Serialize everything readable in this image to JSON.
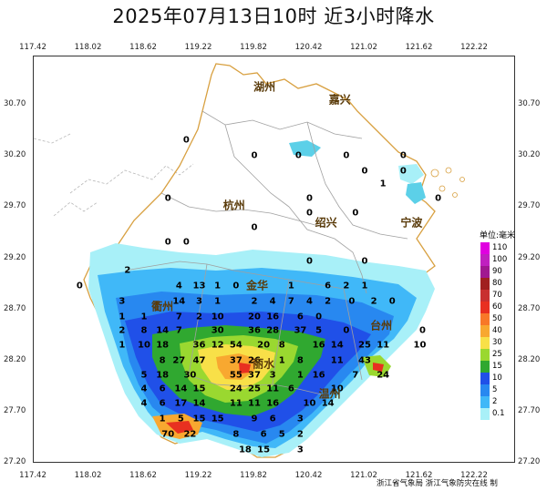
{
  "title": "2025年07月13日10时  近3小时降水",
  "lon_ticks": [
    "117.42",
    "118.02",
    "118.62",
    "119.22",
    "119.82",
    "120.42",
    "121.02",
    "121.62",
    "122.22"
  ],
  "lat_ticks": [
    "30.70",
    "30.20",
    "29.70",
    "29.20",
    "28.70",
    "28.20",
    "27.70",
    "27.20"
  ],
  "cities": [
    {
      "name": "湖州",
      "lon": 119.93,
      "lat": 30.88
    },
    {
      "name": "嘉兴",
      "lon": 120.75,
      "lat": 30.75
    },
    {
      "name": "杭州",
      "lon": 119.6,
      "lat": 29.72
    },
    {
      "name": "绍兴",
      "lon": 120.6,
      "lat": 29.55
    },
    {
      "name": "宁波",
      "lon": 121.53,
      "lat": 29.55
    },
    {
      "name": "金华",
      "lon": 119.85,
      "lat": 28.94
    },
    {
      "name": "衢州",
      "lon": 118.82,
      "lat": 28.73
    },
    {
      "name": "台州",
      "lon": 121.2,
      "lat": 28.55
    },
    {
      "name": "丽水",
      "lon": 119.92,
      "lat": 28.17
    },
    {
      "name": "温州",
      "lon": 120.64,
      "lat": 27.88
    }
  ],
  "rain_values": [
    {
      "v": "0",
      "lon": 119.08,
      "lat": 30.35
    },
    {
      "v": "0",
      "lon": 119.82,
      "lat": 30.2
    },
    {
      "v": "0",
      "lon": 120.3,
      "lat": 30.2
    },
    {
      "v": "0",
      "lon": 120.82,
      "lat": 30.2
    },
    {
      "v": "0",
      "lon": 121.02,
      "lat": 30.05
    },
    {
      "v": "0",
      "lon": 121.44,
      "lat": 30.2
    },
    {
      "v": "0",
      "lon": 121.44,
      "lat": 30.05
    },
    {
      "v": "1",
      "lon": 121.22,
      "lat": 29.93
    },
    {
      "v": "0",
      "lon": 118.88,
      "lat": 29.78
    },
    {
      "v": "0",
      "lon": 120.42,
      "lat": 29.78
    },
    {
      "v": "0",
      "lon": 121.82,
      "lat": 29.78
    },
    {
      "v": "0",
      "lon": 120.42,
      "lat": 29.64
    },
    {
      "v": "0",
      "lon": 120.92,
      "lat": 29.64
    },
    {
      "v": "0",
      "lon": 119.82,
      "lat": 29.5
    },
    {
      "v": "0",
      "lon": 118.88,
      "lat": 29.36
    },
    {
      "v": "0",
      "lon": 119.08,
      "lat": 29.36
    },
    {
      "v": "0",
      "lon": 120.42,
      "lat": 29.17
    },
    {
      "v": "0",
      "lon": 121.02,
      "lat": 29.17
    },
    {
      "v": "2",
      "lon": 118.44,
      "lat": 29.08
    },
    {
      "v": "0",
      "lon": 117.92,
      "lat": 28.93
    },
    {
      "v": "4",
      "lon": 119.0,
      "lat": 28.93
    },
    {
      "v": "13",
      "lon": 119.22,
      "lat": 28.93
    },
    {
      "v": "1",
      "lon": 119.42,
      "lat": 28.93
    },
    {
      "v": "0",
      "lon": 119.62,
      "lat": 28.93
    },
    {
      "v": "1",
      "lon": 120.22,
      "lat": 28.93
    },
    {
      "v": "6",
      "lon": 120.62,
      "lat": 28.93
    },
    {
      "v": "2",
      "lon": 120.82,
      "lat": 28.93
    },
    {
      "v": "1",
      "lon": 121.02,
      "lat": 28.93
    },
    {
      "v": "3",
      "lon": 118.38,
      "lat": 28.78
    },
    {
      "v": "14",
      "lon": 119.0,
      "lat": 28.78
    },
    {
      "v": "3",
      "lon": 119.22,
      "lat": 28.78
    },
    {
      "v": "1",
      "lon": 119.42,
      "lat": 28.78
    },
    {
      "v": "2",
      "lon": 119.82,
      "lat": 28.78
    },
    {
      "v": "4",
      "lon": 120.02,
      "lat": 28.78
    },
    {
      "v": "7",
      "lon": 120.22,
      "lat": 28.78
    },
    {
      "v": "4",
      "lon": 120.42,
      "lat": 28.78
    },
    {
      "v": "2",
      "lon": 120.62,
      "lat": 28.78
    },
    {
      "v": "0",
      "lon": 120.88,
      "lat": 28.78
    },
    {
      "v": "2",
      "lon": 121.12,
      "lat": 28.78
    },
    {
      "v": "0",
      "lon": 121.32,
      "lat": 28.78
    },
    {
      "v": "1",
      "lon": 118.38,
      "lat": 28.63
    },
    {
      "v": "1",
      "lon": 118.62,
      "lat": 28.63
    },
    {
      "v": "7",
      "lon": 119.0,
      "lat": 28.63
    },
    {
      "v": "2",
      "lon": 119.22,
      "lat": 28.63
    },
    {
      "v": "10",
      "lon": 119.42,
      "lat": 28.63
    },
    {
      "v": "20",
      "lon": 119.82,
      "lat": 28.63
    },
    {
      "v": "16",
      "lon": 120.02,
      "lat": 28.63
    },
    {
      "v": "6",
      "lon": 120.32,
      "lat": 28.63
    },
    {
      "v": "0",
      "lon": 120.52,
      "lat": 28.63
    },
    {
      "v": "2",
      "lon": 118.38,
      "lat": 28.49
    },
    {
      "v": "8",
      "lon": 118.62,
      "lat": 28.49
    },
    {
      "v": "14",
      "lon": 118.82,
      "lat": 28.49
    },
    {
      "v": "7",
      "lon": 119.0,
      "lat": 28.49
    },
    {
      "v": "30",
      "lon": 119.42,
      "lat": 28.49
    },
    {
      "v": "36",
      "lon": 119.82,
      "lat": 28.49
    },
    {
      "v": "28",
      "lon": 120.02,
      "lat": 28.49
    },
    {
      "v": "37",
      "lon": 120.32,
      "lat": 28.49
    },
    {
      "v": "5",
      "lon": 120.52,
      "lat": 28.49
    },
    {
      "v": "0",
      "lon": 120.82,
      "lat": 28.49
    },
    {
      "v": "0",
      "lon": 121.65,
      "lat": 28.49
    },
    {
      "v": "1",
      "lon": 118.38,
      "lat": 28.35
    },
    {
      "v": "10",
      "lon": 118.62,
      "lat": 28.35
    },
    {
      "v": "18",
      "lon": 118.82,
      "lat": 28.35
    },
    {
      "v": "36",
      "lon": 119.22,
      "lat": 28.35
    },
    {
      "v": "12",
      "lon": 119.42,
      "lat": 28.35
    },
    {
      "v": "54",
      "lon": 119.62,
      "lat": 28.35
    },
    {
      "v": "20",
      "lon": 119.92,
      "lat": 28.35
    },
    {
      "v": "8",
      "lon": 120.12,
      "lat": 28.35
    },
    {
      "v": "16",
      "lon": 120.52,
      "lat": 28.35
    },
    {
      "v": "14",
      "lon": 120.72,
      "lat": 28.35
    },
    {
      "v": "25",
      "lon": 121.02,
      "lat": 28.35
    },
    {
      "v": "11",
      "lon": 121.22,
      "lat": 28.35
    },
    {
      "v": "10",
      "lon": 121.62,
      "lat": 28.35
    },
    {
      "v": "8",
      "lon": 118.82,
      "lat": 28.2
    },
    {
      "v": "27",
      "lon": 119.0,
      "lat": 28.2
    },
    {
      "v": "47",
      "lon": 119.22,
      "lat": 28.2
    },
    {
      "v": "37",
      "lon": 119.62,
      "lat": 28.2
    },
    {
      "v": "26",
      "lon": 119.82,
      "lat": 28.2
    },
    {
      "v": "1",
      "lon": 120.12,
      "lat": 28.2
    },
    {
      "v": "8",
      "lon": 120.32,
      "lat": 28.2
    },
    {
      "v": "11",
      "lon": 120.72,
      "lat": 28.2
    },
    {
      "v": "43",
      "lon": 121.02,
      "lat": 28.2
    },
    {
      "v": "5",
      "lon": 118.62,
      "lat": 28.06
    },
    {
      "v": "18",
      "lon": 118.82,
      "lat": 28.06
    },
    {
      "v": "30",
      "lon": 119.12,
      "lat": 28.06
    },
    {
      "v": "55",
      "lon": 119.62,
      "lat": 28.06
    },
    {
      "v": "37",
      "lon": 119.82,
      "lat": 28.06
    },
    {
      "v": "3",
      "lon": 120.02,
      "lat": 28.06
    },
    {
      "v": "1",
      "lon": 120.32,
      "lat": 28.06
    },
    {
      "v": "16",
      "lon": 120.52,
      "lat": 28.06
    },
    {
      "v": "7",
      "lon": 120.92,
      "lat": 28.06
    },
    {
      "v": "24",
      "lon": 121.22,
      "lat": 28.06
    },
    {
      "v": "4",
      "lon": 118.62,
      "lat": 27.92
    },
    {
      "v": "6",
      "lon": 118.82,
      "lat": 27.92
    },
    {
      "v": "14",
      "lon": 119.02,
      "lat": 27.92
    },
    {
      "v": "15",
      "lon": 119.22,
      "lat": 27.92
    },
    {
      "v": "24",
      "lon": 119.62,
      "lat": 27.92
    },
    {
      "v": "25",
      "lon": 119.82,
      "lat": 27.92
    },
    {
      "v": "11",
      "lon": 120.02,
      "lat": 27.92
    },
    {
      "v": "6",
      "lon": 120.22,
      "lat": 27.92
    },
    {
      "v": "10",
      "lon": 120.72,
      "lat": 27.92
    },
    {
      "v": "4",
      "lon": 118.62,
      "lat": 27.78
    },
    {
      "v": "6",
      "lon": 118.82,
      "lat": 27.78
    },
    {
      "v": "17",
      "lon": 119.02,
      "lat": 27.78
    },
    {
      "v": "14",
      "lon": 119.22,
      "lat": 27.78
    },
    {
      "v": "11",
      "lon": 119.62,
      "lat": 27.78
    },
    {
      "v": "11",
      "lon": 119.82,
      "lat": 27.78
    },
    {
      "v": "16",
      "lon": 120.02,
      "lat": 27.78
    },
    {
      "v": "10",
      "lon": 120.42,
      "lat": 27.78
    },
    {
      "v": "14",
      "lon": 120.62,
      "lat": 27.78
    },
    {
      "v": "1",
      "lon": 118.82,
      "lat": 27.63
    },
    {
      "v": "5",
      "lon": 119.02,
      "lat": 27.63
    },
    {
      "v": "15",
      "lon": 119.22,
      "lat": 27.63
    },
    {
      "v": "15",
      "lon": 119.42,
      "lat": 27.63
    },
    {
      "v": "9",
      "lon": 119.82,
      "lat": 27.63
    },
    {
      "v": "6",
      "lon": 120.02,
      "lat": 27.63
    },
    {
      "v": "3",
      "lon": 120.32,
      "lat": 27.63
    },
    {
      "v": "70",
      "lon": 118.88,
      "lat": 27.48
    },
    {
      "v": "22",
      "lon": 119.12,
      "lat": 27.48
    },
    {
      "v": "8",
      "lon": 119.62,
      "lat": 27.48
    },
    {
      "v": "6",
      "lon": 119.92,
      "lat": 27.48
    },
    {
      "v": "5",
      "lon": 120.12,
      "lat": 27.48
    },
    {
      "v": "2",
      "lon": 120.32,
      "lat": 27.48
    },
    {
      "v": "18",
      "lon": 119.72,
      "lat": 27.33
    },
    {
      "v": "15",
      "lon": 119.92,
      "lat": 27.33
    },
    {
      "v": "3",
      "lon": 120.32,
      "lat": 27.33
    }
  ],
  "legend": {
    "unit": "单位:毫米",
    "items": [
      {
        "label": "110",
        "color": "#e000e0"
      },
      {
        "label": "100",
        "color": "#c020c0"
      },
      {
        "label": "90",
        "color": "#a01890"
      },
      {
        "label": "80",
        "color": "#a02020"
      },
      {
        "label": "70",
        "color": "#c83030"
      },
      {
        "label": "60",
        "color": "#e83020"
      },
      {
        "label": "50",
        "color": "#f87828"
      },
      {
        "label": "40",
        "color": "#f8a830"
      },
      {
        "label": "30",
        "color": "#f8e048"
      },
      {
        "label": "25",
        "color": "#9ad830"
      },
      {
        "label": "15",
        "color": "#30a830"
      },
      {
        "label": "10",
        "color": "#2050e8"
      },
      {
        "label": "5",
        "color": "#2888f0"
      },
      {
        "label": "2",
        "color": "#40b8f8"
      },
      {
        "label": "0.1",
        "color": "#a8f0f8"
      }
    ]
  },
  "footer": "浙江省气象局    浙江气象防灾在线  制",
  "colors": {
    "province_border": "#d8a040",
    "city_border": "#a0a0a0",
    "outside_border": "#b8b8b8",
    "water": "#5cd0e8"
  }
}
